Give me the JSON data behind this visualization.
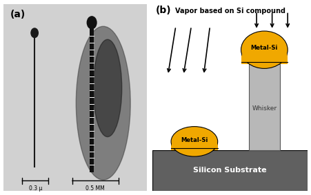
{
  "fig_width": 4.51,
  "fig_height": 2.83,
  "dpi": 100,
  "bg_color": "#ffffff",
  "substrate_color": "#606060",
  "whisker_color": "#b8b8b8",
  "droplet_color": "#f0a800",
  "label_a": "(a)",
  "label_b": "(b)",
  "vapor_text": "Vapor based on Si compound",
  "whisker_label": "Whisker",
  "substrate_label": "Silicon Substrate",
  "metal_si_label": "Metal-Si",
  "scale1_text": "0.3 μ",
  "scale2_text": "0.5 MM"
}
